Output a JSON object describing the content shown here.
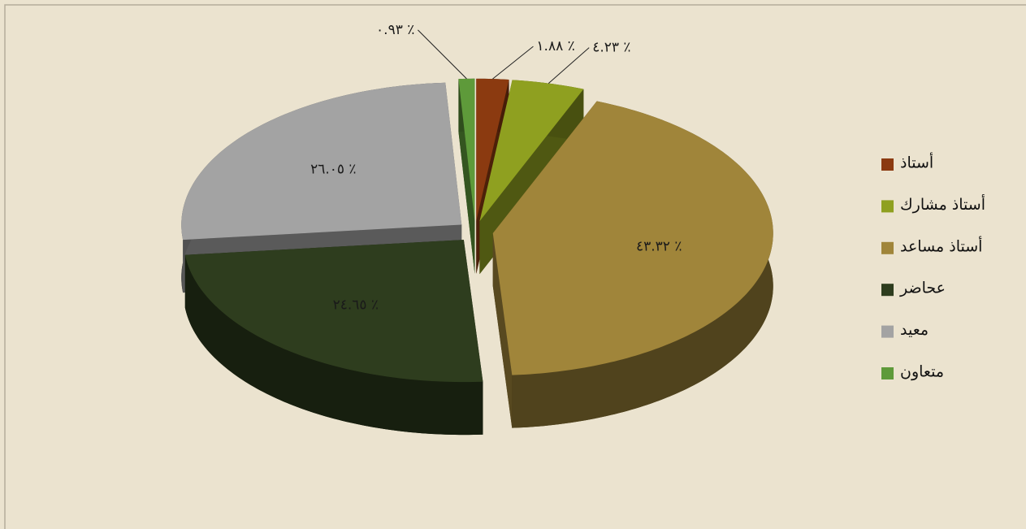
{
  "chart_data": {
    "type": "pie3d",
    "categories": [
      "أستاذ",
      "أستاذ مشارك",
      "أستاذ مساعد",
      "عحاضر",
      "معيد",
      "متعاون"
    ],
    "values": [
      1.88,
      4.23,
      43.32,
      24.65,
      26.05,
      0.93
    ],
    "value_labels": [
      "١.٨٨ ٪",
      "٤.٢٣ ٪",
      "٤٣.٣٢ ٪",
      "٢٤.٦٥ ٪",
      "٢٦.٠٥ ٪",
      "٠.٩٣ ٪"
    ],
    "colors": [
      "#8b3a10",
      "#8fa020",
      "#a0853a",
      "#2e3d1e",
      "#a3a3a3",
      "#5e9a3a"
    ],
    "legend": "right"
  }
}
